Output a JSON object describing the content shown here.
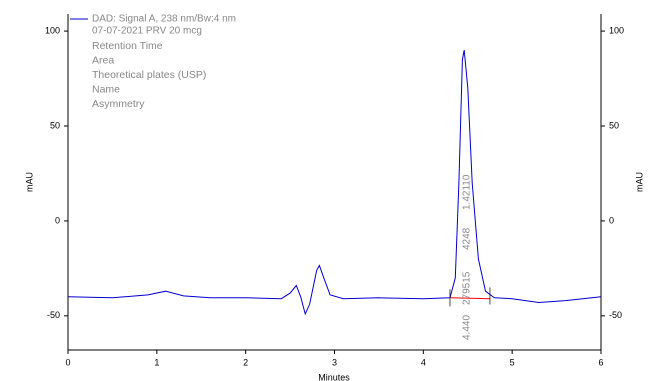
{
  "chart_data": {
    "type": "line",
    "legend_title": "DAD: Signal A, 238 nm/Bw:4 nm",
    "legend_subtitle": "07-07-2021 PRV 20 mcg",
    "legend_labels": [
      "Retention Time",
      "Area",
      "Theoretical plates (USP)",
      "Name",
      "Asymmetry"
    ],
    "peak_labels": [
      "4.440",
      "279515",
      "4248",
      "1.42110"
    ],
    "ylabel": "mAU",
    "y2label": "mAU",
    "xlabel": "Minutes",
    "xlim": [
      0,
      6
    ],
    "xticks": [
      0,
      1,
      2,
      3,
      4,
      5,
      6
    ],
    "ylim": [
      -68,
      109
    ],
    "yticks": [
      -50,
      0,
      50,
      100
    ],
    "series": [
      {
        "name": "DAD: Signal A, 238 nm/Bw:4 nm",
        "color": "#0000cc",
        "x": [
          0,
          0.5,
          0.9,
          1.1,
          1.3,
          1.6,
          2.0,
          2.4,
          2.5,
          2.57,
          2.62,
          2.67,
          2.72,
          2.8,
          2.83,
          2.88,
          2.95,
          3.1,
          3.5,
          4.0,
          4.3,
          4.36,
          4.4,
          4.44,
          4.46,
          4.5,
          4.55,
          4.62,
          4.7,
          4.8,
          5.0,
          5.3,
          5.6,
          6.0
        ],
        "values": [
          -40,
          -40.5,
          -39,
          -37,
          -39.5,
          -40.5,
          -40.5,
          -41,
          -38,
          -34,
          -40,
          -49,
          -44,
          -26,
          -23.5,
          -30,
          -39,
          -41,
          -40.5,
          -41,
          -40.5,
          -30,
          20,
          85,
          90,
          70,
          20,
          -20,
          -37,
          -40.5,
          -41,
          -43,
          -42,
          -40
        ]
      }
    ],
    "baseline": {
      "color": "#ff0000",
      "x": [
        4.3,
        4.75
      ],
      "values": [
        -40.5,
        -41
      ]
    }
  }
}
